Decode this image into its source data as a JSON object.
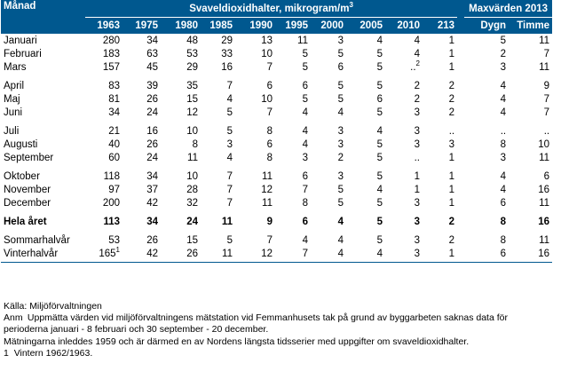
{
  "header": {
    "month_col": "Månad",
    "svavel_title": "Svaveldioxidhalter, mikrogram/m",
    "svavel_title_sup": "3",
    "max_title": "Maxvärden 2013",
    "years": [
      "1963",
      "1975",
      "1980",
      "1985",
      "1990",
      "1995",
      "2000",
      "2005",
      "2010",
      "213"
    ],
    "max_cols": [
      "Dygn",
      "Timme"
    ]
  },
  "rows": [
    {
      "label": "Januari",
      "cells": [
        {
          "v": "280"
        },
        {
          "v": "34"
        },
        {
          "v": "48"
        },
        {
          "v": "29"
        },
        {
          "v": "13"
        },
        {
          "v": "11"
        },
        {
          "v": "3"
        },
        {
          "v": "4"
        },
        {
          "v": "4"
        },
        {
          "v": "1"
        }
      ],
      "max": [
        "5",
        "11"
      ]
    },
    {
      "label": "Februari",
      "cells": [
        {
          "v": "183"
        },
        {
          "v": "63"
        },
        {
          "v": "53"
        },
        {
          "v": "33"
        },
        {
          "v": "10"
        },
        {
          "v": "5"
        },
        {
          "v": "5"
        },
        {
          "v": "5"
        },
        {
          "v": "4"
        },
        {
          "v": "1"
        }
      ],
      "max": [
        "2",
        "7"
      ]
    },
    {
      "label": "Mars",
      "cells": [
        {
          "v": "157"
        },
        {
          "v": "45"
        },
        {
          "v": "29"
        },
        {
          "v": "16"
        },
        {
          "v": "7"
        },
        {
          "v": "5"
        },
        {
          "v": "6"
        },
        {
          "v": "5"
        },
        {
          "v": "..",
          "sup": "2"
        },
        {
          "v": "1"
        }
      ],
      "max": [
        "3",
        "11"
      ]
    },
    {
      "spacer": true
    },
    {
      "label": "April",
      "cells": [
        {
          "v": "83"
        },
        {
          "v": "39"
        },
        {
          "v": "35"
        },
        {
          "v": "7"
        },
        {
          "v": "6"
        },
        {
          "v": "6"
        },
        {
          "v": "5"
        },
        {
          "v": "5"
        },
        {
          "v": "2"
        },
        {
          "v": "2"
        }
      ],
      "max": [
        "4",
        "9"
      ]
    },
    {
      "label": "Maj",
      "cells": [
        {
          "v": "81"
        },
        {
          "v": "26"
        },
        {
          "v": "15"
        },
        {
          "v": "4"
        },
        {
          "v": "10"
        },
        {
          "v": "5"
        },
        {
          "v": "5"
        },
        {
          "v": "6"
        },
        {
          "v": "2"
        },
        {
          "v": "2"
        }
      ],
      "max": [
        "4",
        "7"
      ]
    },
    {
      "label": "Juni",
      "cells": [
        {
          "v": "34"
        },
        {
          "v": "24"
        },
        {
          "v": "12"
        },
        {
          "v": "5"
        },
        {
          "v": "7"
        },
        {
          "v": "4"
        },
        {
          "v": "4"
        },
        {
          "v": "5"
        },
        {
          "v": "3"
        },
        {
          "v": "2"
        }
      ],
      "max": [
        "4",
        "7"
      ]
    },
    {
      "spacer": true
    },
    {
      "label": "Juli",
      "cells": [
        {
          "v": "21"
        },
        {
          "v": "16"
        },
        {
          "v": "10"
        },
        {
          "v": "5"
        },
        {
          "v": "8"
        },
        {
          "v": "4"
        },
        {
          "v": "3"
        },
        {
          "v": "4"
        },
        {
          "v": "3"
        },
        {
          "v": ".."
        }
      ],
      "max": [
        "..",
        ".."
      ]
    },
    {
      "label": "Augusti",
      "cells": [
        {
          "v": "40"
        },
        {
          "v": "26"
        },
        {
          "v": "8"
        },
        {
          "v": "3"
        },
        {
          "v": "6"
        },
        {
          "v": "4"
        },
        {
          "v": "3"
        },
        {
          "v": "5"
        },
        {
          "v": "3"
        },
        {
          "v": "3"
        }
      ],
      "max": [
        "8",
        "10"
      ]
    },
    {
      "label": "September",
      "cells": [
        {
          "v": "60"
        },
        {
          "v": "24"
        },
        {
          "v": "11"
        },
        {
          "v": "4"
        },
        {
          "v": "8"
        },
        {
          "v": "3"
        },
        {
          "v": "2"
        },
        {
          "v": "5"
        },
        {
          "v": ".."
        },
        {
          "v": "1"
        }
      ],
      "max": [
        "3",
        "11"
      ]
    },
    {
      "spacer": true
    },
    {
      "label": "Oktober",
      "cells": [
        {
          "v": "118"
        },
        {
          "v": "34"
        },
        {
          "v": "10"
        },
        {
          "v": "7"
        },
        {
          "v": "11"
        },
        {
          "v": "6"
        },
        {
          "v": "3"
        },
        {
          "v": "5"
        },
        {
          "v": "1"
        },
        {
          "v": "1"
        }
      ],
      "max": [
        "4",
        "6"
      ]
    },
    {
      "label": "November",
      "cells": [
        {
          "v": "97"
        },
        {
          "v": "37"
        },
        {
          "v": "28"
        },
        {
          "v": "7"
        },
        {
          "v": "12"
        },
        {
          "v": "7"
        },
        {
          "v": "5"
        },
        {
          "v": "4"
        },
        {
          "v": "1"
        },
        {
          "v": "1"
        }
      ],
      "max": [
        "4",
        "16"
      ]
    },
    {
      "label": "December",
      "cells": [
        {
          "v": "200"
        },
        {
          "v": "42"
        },
        {
          "v": "32"
        },
        {
          "v": "7"
        },
        {
          "v": "11"
        },
        {
          "v": "8"
        },
        {
          "v": "5"
        },
        {
          "v": "5"
        },
        {
          "v": "3"
        },
        {
          "v": "1"
        }
      ],
      "max": [
        "6",
        "11"
      ]
    },
    {
      "spacer": true
    },
    {
      "label": "Hela året",
      "bold": true,
      "cells": [
        {
          "v": "113"
        },
        {
          "v": "34"
        },
        {
          "v": "24"
        },
        {
          "v": "11"
        },
        {
          "v": "9"
        },
        {
          "v": "6"
        },
        {
          "v": "4"
        },
        {
          "v": "5"
        },
        {
          "v": "3"
        },
        {
          "v": "2"
        }
      ],
      "max": [
        "8",
        "16"
      ]
    },
    {
      "spacer": true
    },
    {
      "label": "Sommarhalvår",
      "cells": [
        {
          "v": "53"
        },
        {
          "v": "26"
        },
        {
          "v": "15"
        },
        {
          "v": "5"
        },
        {
          "v": "7"
        },
        {
          "v": "4"
        },
        {
          "v": "4"
        },
        {
          "v": "5"
        },
        {
          "v": "3"
        },
        {
          "v": "2"
        }
      ],
      "max": [
        "8",
        "11"
      ]
    },
    {
      "label": "Vinterhalvår",
      "cells": [
        {
          "v": "165",
          "sup": "1"
        },
        {
          "v": "42"
        },
        {
          "v": "26"
        },
        {
          "v": "11"
        },
        {
          "v": "12"
        },
        {
          "v": "7"
        },
        {
          "v": "4"
        },
        {
          "v": "4"
        },
        {
          "v": "3"
        },
        {
          "v": "1"
        }
      ],
      "max": [
        "6",
        "16"
      ]
    }
  ],
  "notes": {
    "source_prefix": "Källa:",
    "source_text": "Miljöförvaltningen",
    "anm_prefix": "Anm",
    "anm_line1": "Uppmätta värden vid miljöförvaltningens mätstation vid Femmanhusets tak på grund av byggarbeten saknas data för",
    "anm_line2": "perioderna januari - 8 februari och 30 september - 20 december.",
    "line3": "Mätningarna inleddes 1959 och är därmed en av Nordens längsta tidsserier med uppgifter om svaveldioxidhalter.",
    "fn1_prefix": "1",
    "fn1_text": "Vintern 1962/1963."
  },
  "colors": {
    "header_bg": "#00588f",
    "header_fg": "#ffffff"
  }
}
